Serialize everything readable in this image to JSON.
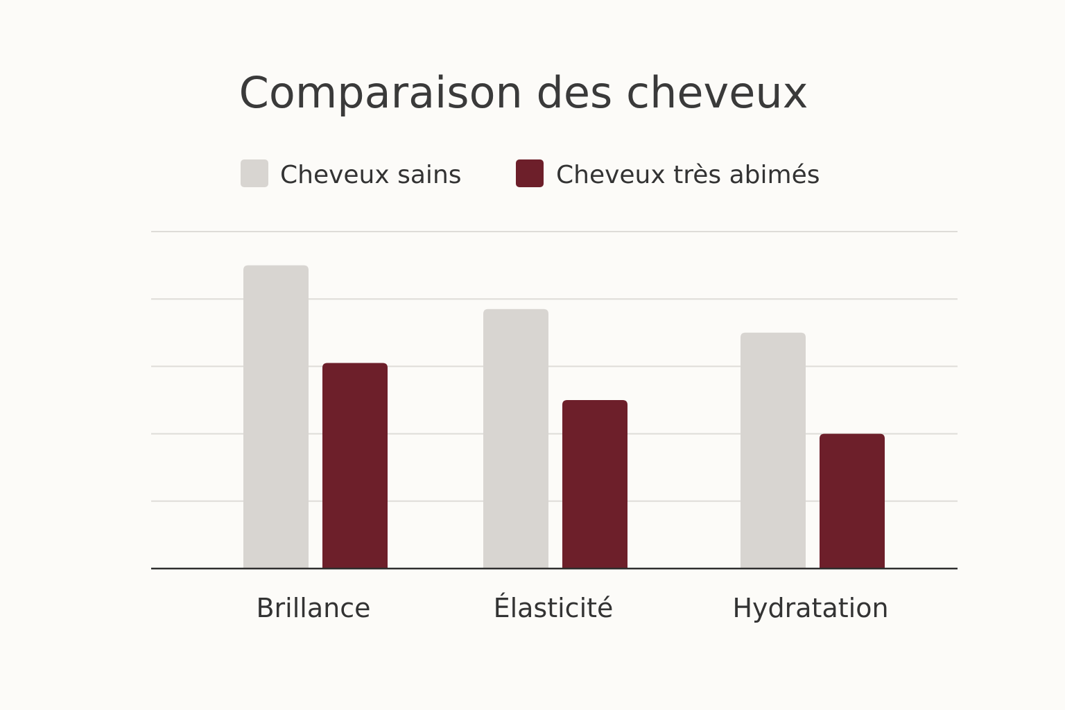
{
  "chart_data": {
    "type": "bar",
    "title": "Comparaison des cheveux",
    "categories": [
      "Brillance",
      "Élasticité",
      "Hydratation"
    ],
    "series": [
      {
        "name": "Cheveux sains",
        "color": "#d8d5d1",
        "values": [
          4.5,
          3.85,
          3.5
        ]
      },
      {
        "name": "Cheveux très abimés",
        "color": "#6d1f2a",
        "values": [
          3.05,
          2.5,
          2.0
        ]
      }
    ],
    "xlabel": "",
    "ylabel": "",
    "ylim": [
      0,
      5
    ],
    "grid": true,
    "legend": "top"
  }
}
